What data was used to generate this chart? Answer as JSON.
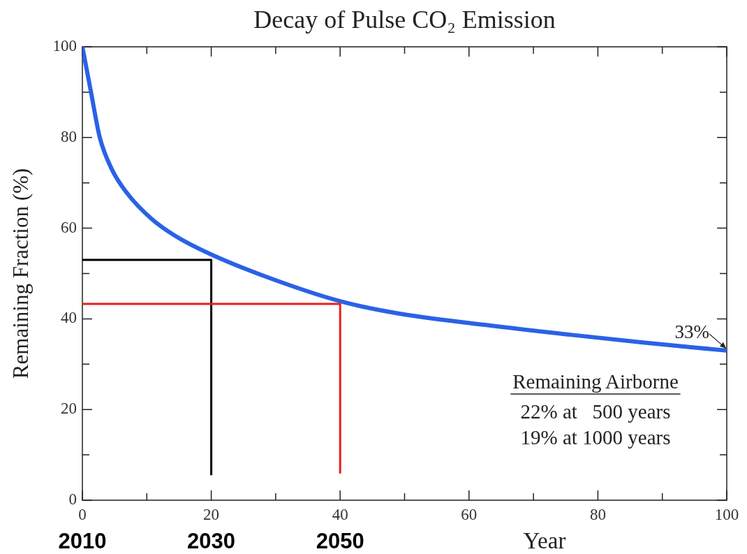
{
  "chart_data": {
    "type": "line",
    "title": "Decay of Pulse CO₂ Emission",
    "xlabel": "Year",
    "ylabel": "Remaining Fraction (%)",
    "xlim": [
      0,
      100
    ],
    "ylim": [
      0,
      100
    ],
    "xticks": [
      0,
      {
        "value": 10,
        "label": null
      },
      20,
      {
        "value": 30,
        "label": null
      },
      40,
      {
        "value": 50,
        "label": null
      },
      60,
      {
        "value": 70,
        "label": null
      },
      80,
      {
        "value": 90,
        "label": null
      },
      100
    ],
    "yticks": [
      0,
      {
        "value": 10,
        "label": null
      },
      20,
      {
        "value": 30,
        "label": null
      },
      40,
      {
        "value": 50,
        "label": null
      },
      60,
      {
        "value": 70,
        "label": null
      },
      80,
      {
        "value": 90,
        "label": null
      },
      100
    ],
    "grid": false,
    "legend": false,
    "marker": "none",
    "line_style": "solid",
    "series": [
      {
        "color": "#2a62e6",
        "x": [
          0,
          1.3,
          2.7,
          4.6,
          7.0,
          10.7,
          14.3,
          19.7,
          28.7,
          40,
          48.6,
          62.2,
          75.7,
          87,
          100
        ],
        "values": [
          100,
          90.3,
          80,
          72.9,
          67.6,
          62.1,
          58.4,
          54.4,
          49.2,
          43.9,
          41.3,
          38.7,
          36.5,
          34.8,
          33
        ]
      },
      {
        "color": "#000000",
        "x": [
          0,
          20,
          20
        ],
        "values": [
          53,
          53,
          5.5
        ]
      },
      {
        "color": "#e8201c",
        "x": [
          0,
          40,
          40
        ],
        "values": [
          43.3,
          43.3,
          5.9
        ]
      }
    ],
    "annotations": [
      {
        "text": "33%",
        "x": 100,
        "y": 33
      },
      "Remaining Airborne",
      "22% at   500 years",
      "19% at 1000 years",
      "2010",
      "2030",
      "2050"
    ]
  }
}
